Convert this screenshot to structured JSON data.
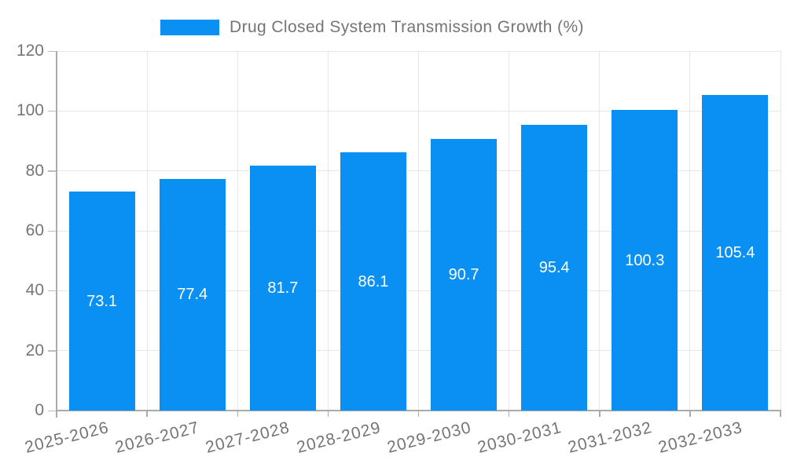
{
  "chart_data": {
    "type": "bar",
    "title": "Drug Closed System Transmission Growth (%)",
    "legend": [
      "Drug Closed System Transmission Growth (%)"
    ],
    "legend_position": "top",
    "categories": [
      "2025-2026",
      "2026-2027",
      "2027-2028",
      "2028-2029",
      "2029-2030",
      "2030-2031",
      "2031-2032",
      "2032-2033"
    ],
    "series": [
      {
        "name": "Drug Closed System Transmission Growth (%)",
        "values": [
          73.1,
          77.4,
          81.7,
          86.1,
          90.7,
          95.4,
          100.3,
          105.4
        ]
      }
    ],
    "value_label_position": "inside-center",
    "value_label_decimals": 1,
    "xlabel": "",
    "ylabel": "",
    "ylim": [
      0,
      120
    ],
    "yticks": [
      0,
      20,
      40,
      60,
      80,
      100,
      120
    ],
    "grid": true,
    "x_tick_rotation_deg": -14,
    "colors": {
      "bar": "#0A90F2",
      "value_label": "#FFFFFF",
      "axis_line": "#ABABAB",
      "tick_mark": "#BDBDBD",
      "grid_line": "#E6E6E6",
      "tick_label": "#757575",
      "legend_text": "#757575",
      "background": "#FFFFFF"
    }
  }
}
